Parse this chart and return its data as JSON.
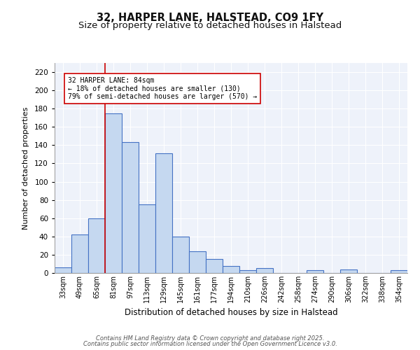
{
  "title1": "32, HARPER LANE, HALSTEAD, CO9 1FY",
  "title2": "Size of property relative to detached houses in Halstead",
  "xlabel": "Distribution of detached houses by size in Halstead",
  "ylabel": "Number of detached properties",
  "categories": [
    "33sqm",
    "49sqm",
    "65sqm",
    "81sqm",
    "97sqm",
    "113sqm",
    "129sqm",
    "145sqm",
    "161sqm",
    "177sqm",
    "194sqm",
    "210sqm",
    "226sqm",
    "242sqm",
    "258sqm",
    "274sqm",
    "290sqm",
    "306sqm",
    "322sqm",
    "338sqm",
    "354sqm"
  ],
  "values": [
    6,
    42,
    60,
    175,
    143,
    75,
    131,
    40,
    24,
    15,
    8,
    3,
    5,
    0,
    0,
    3,
    0,
    4,
    0,
    0,
    3
  ],
  "bar_color": "#c5d8f0",
  "bar_edge_color": "#4472c4",
  "red_line_index": 3,
  "annotation_text": "32 HARPER LANE: 84sqm\n← 18% of detached houses are smaller (130)\n79% of semi-detached houses are larger (570) →",
  "annotation_box_color": "#ffffff",
  "annotation_box_edge": "#cc0000",
  "ylim": [
    0,
    230
  ],
  "yticks": [
    0,
    20,
    40,
    60,
    80,
    100,
    120,
    140,
    160,
    180,
    200,
    220
  ],
  "footer1": "Contains HM Land Registry data © Crown copyright and database right 2025.",
  "footer2": "Contains public sector information licensed under the Open Government Licence v3.0.",
  "bg_color": "#eef2fa",
  "grid_color": "#ffffff",
  "title1_fontsize": 10.5,
  "title2_fontsize": 9.5
}
